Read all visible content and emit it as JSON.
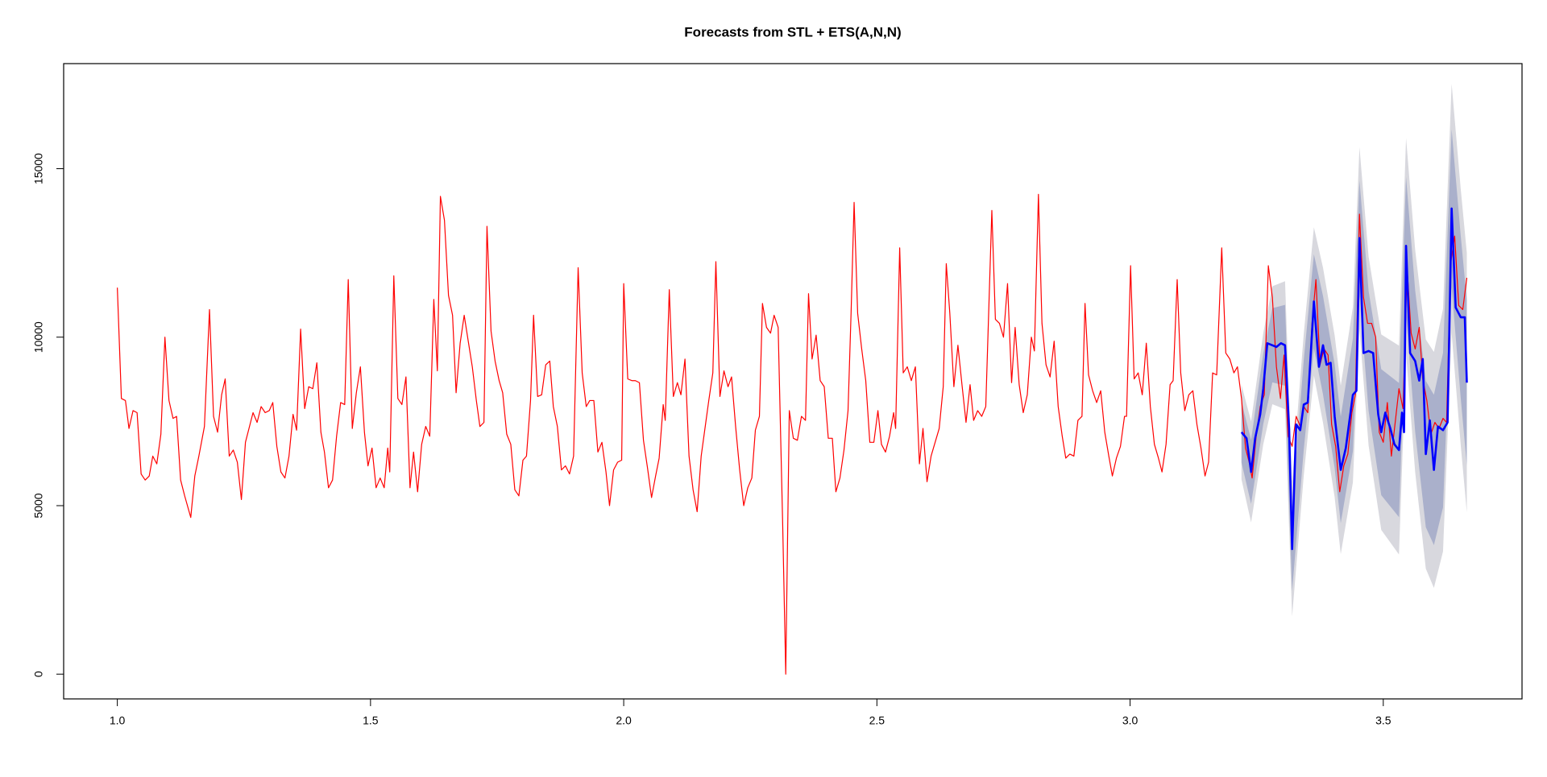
{
  "chart_data": {
    "type": "line",
    "title": "Forecasts from STL +  ETS(A,N,N)",
    "xlim": [
      0.894,
      3.774
    ],
    "ylim": [
      -735,
      18118
    ],
    "xticks": [
      {
        "value": 1,
        "label": "1.0"
      },
      1.5,
      {
        "value": 2,
        "label": "2.0"
      },
      2.5,
      {
        "value": 3,
        "label": "3.0"
      },
      3.5
    ],
    "yticks": [
      0,
      5000,
      10000,
      15000
    ],
    "intervals": [
      {
        "color": "#d8d8de",
        "x": [
          3.22,
          3.239,
          3.263,
          3.281,
          3.306,
          3.32,
          3.343,
          3.363,
          3.381,
          3.404,
          3.416,
          3.44,
          3.453,
          3.471,
          3.496,
          3.531,
          3.545,
          3.563,
          3.584,
          3.6,
          3.618,
          3.635,
          3.653,
          3.665
        ],
        "lower": [
          5780,
          4500,
          6820,
          8010,
          7860,
          1710,
          5900,
          8860,
          7460,
          5250,
          3560,
          5690,
          10240,
          6790,
          4280,
          3550,
          9510,
          5990,
          3130,
          2560,
          3640,
          10120,
          6790,
          4800
        ],
        "upper": [
          8580,
          7500,
          10120,
          11510,
          11660,
          5710,
          10100,
          13260,
          12060,
          10050,
          8560,
          10890,
          15640,
          12390,
          10080,
          9750,
          15910,
          12590,
          9930,
          9560,
          10840,
          17520,
          14390,
          12500
        ]
      },
      {
        "color": "#aab0cb",
        "x": [
          3.22,
          3.239,
          3.263,
          3.281,
          3.306,
          3.32,
          3.343,
          3.363,
          3.381,
          3.404,
          3.416,
          3.44,
          3.453,
          3.471,
          3.496,
          3.531,
          3.545,
          3.563,
          3.584,
          3.6,
          3.618,
          3.635,
          3.653,
          3.665
        ],
        "lower": [
          6280,
          5050,
          7420,
          8660,
          8560,
          2460,
          6670,
          9660,
          8300,
          6110,
          4480,
          6620,
          11230,
          7810,
          5310,
          4660,
          10670,
          7190,
          4360,
          3830,
          4950,
          11470,
          8180,
          6200
        ],
        "upper": [
          8080,
          6950,
          9520,
          10860,
          10960,
          4960,
          9330,
          12460,
          11220,
          9190,
          7640,
          9960,
          14650,
          11370,
          9050,
          8640,
          14750,
          11390,
          8700,
          8290,
          9530,
          16170,
          13000,
          11100
        ]
      }
    ],
    "series": [
      {
        "color": "#ff0000",
        "width": 1.2,
        "x": [
          1.0,
          1.008,
          1.016,
          1.023,
          1.031,
          1.039,
          1.047,
          1.055,
          1.063,
          1.07,
          1.078,
          1.086,
          1.094,
          1.102,
          1.11,
          1.117,
          1.125,
          1.133,
          1.145,
          1.153,
          1.161,
          1.172,
          1.182,
          1.19,
          1.198,
          1.206,
          1.213,
          1.221,
          1.229,
          1.237,
          1.245,
          1.253,
          1.26,
          1.268,
          1.276,
          1.284,
          1.292,
          1.3,
          1.307,
          1.315,
          1.323,
          1.331,
          1.339,
          1.347,
          1.354,
          1.362,
          1.37,
          1.378,
          1.386,
          1.394,
          1.402,
          1.409,
          1.417,
          1.425,
          1.433,
          1.441,
          1.449,
          1.456,
          1.464,
          1.472,
          1.48,
          1.488,
          1.495,
          1.503,
          1.511,
          1.519,
          1.527,
          1.534,
          1.538,
          1.546,
          1.554,
          1.562,
          1.57,
          1.578,
          1.585,
          1.593,
          1.601,
          1.609,
          1.617,
          1.625,
          1.632,
          1.638,
          1.646,
          1.654,
          1.662,
          1.669,
          1.677,
          1.685,
          1.693,
          1.701,
          1.709,
          1.716,
          1.724,
          1.73,
          1.738,
          1.746,
          1.754,
          1.761,
          1.769,
          1.777,
          1.785,
          1.793,
          1.801,
          1.808,
          1.816,
          1.822,
          1.83,
          1.838,
          1.846,
          1.854,
          1.861,
          1.869,
          1.877,
          1.885,
          1.893,
          1.901,
          1.91,
          1.918,
          1.926,
          1.933,
          1.941,
          1.949,
          1.957,
          1.965,
          1.972,
          1.98,
          1.988,
          1.996,
          2.0,
          2.008,
          2.016,
          2.023,
          2.031,
          2.039,
          2.047,
          2.055,
          2.063,
          2.07,
          2.078,
          2.082,
          2.09,
          2.098,
          2.106,
          2.113,
          2.121,
          2.129,
          2.137,
          2.145,
          2.153,
          2.161,
          2.168,
          2.176,
          2.182,
          2.19,
          2.198,
          2.206,
          2.213,
          2.221,
          2.229,
          2.237,
          2.245,
          2.253,
          2.26,
          2.268,
          2.274,
          2.282,
          2.29,
          2.297,
          2.305,
          2.314,
          2.32,
          2.327,
          2.335,
          2.343,
          2.351,
          2.359,
          2.365,
          2.372,
          2.38,
          2.388,
          2.396,
          2.404,
          2.412,
          2.419,
          2.427,
          2.435,
          2.443,
          2.449,
          2.455,
          2.462,
          2.47,
          2.478,
          2.486,
          2.494,
          2.502,
          2.509,
          2.517,
          2.525,
          2.533,
          2.537,
          2.545,
          2.552,
          2.56,
          2.568,
          2.576,
          2.584,
          2.591,
          2.599,
          2.607,
          2.615,
          2.623,
          2.631,
          2.637,
          2.644,
          2.652,
          2.66,
          2.668,
          2.676,
          2.684,
          2.691,
          2.699,
          2.707,
          2.715,
          2.727,
          2.734,
          2.742,
          2.75,
          2.758,
          2.766,
          2.773,
          2.781,
          2.789,
          2.797,
          2.805,
          2.811,
          2.819,
          2.826,
          2.834,
          2.842,
          2.85,
          2.858,
          2.866,
          2.873,
          2.881,
          2.889,
          2.897,
          2.905,
          2.911,
          2.918,
          2.926,
          2.934,
          2.942,
          2.95,
          2.958,
          2.965,
          2.973,
          2.981,
          2.989,
          2.993,
          3.001,
          3.008,
          3.016,
          3.024,
          3.032,
          3.04,
          3.048,
          3.056,
          3.063,
          3.071,
          3.079,
          3.085,
          3.093,
          3.1,
          3.108,
          3.116,
          3.124,
          3.132,
          3.14,
          3.148,
          3.155,
          3.163,
          3.171,
          3.181,
          3.189,
          3.197,
          3.205,
          3.212,
          3.22,
          3.228,
          3.236,
          3.241,
          3.249,
          3.257,
          3.265,
          3.273,
          3.281,
          3.289,
          3.297,
          3.304,
          3.312,
          3.32,
          3.328,
          3.336,
          3.343,
          3.351,
          3.359,
          3.367,
          3.375,
          3.383,
          3.391,
          3.398,
          3.406,
          3.414,
          3.422,
          3.43,
          3.438,
          3.445,
          3.453,
          3.461,
          3.469,
          3.477,
          3.485,
          3.492,
          3.5,
          3.508,
          3.516,
          3.524,
          3.531,
          3.539,
          3.547,
          3.555,
          3.563,
          3.571,
          3.578,
          3.586,
          3.594,
          3.602,
          3.61,
          3.618,
          3.625,
          3.633,
          3.641,
          3.649,
          3.657,
          3.665
        ],
        "values": [
          11470,
          8180,
          8120,
          7290,
          7820,
          7760,
          5940,
          5760,
          5880,
          6470,
          6240,
          7120,
          10000,
          8120,
          7590,
          7650,
          5760,
          5290,
          4650,
          5880,
          6470,
          7350,
          10820,
          7650,
          7180,
          8290,
          8760,
          6470,
          6650,
          6290,
          5180,
          6880,
          7290,
          7760,
          7470,
          7940,
          7760,
          7820,
          8060,
          6760,
          6000,
          5820,
          6470,
          7710,
          7240,
          10240,
          7880,
          8530,
          8470,
          9240,
          7180,
          6590,
          5530,
          5760,
          7060,
          8060,
          8000,
          11710,
          7290,
          8350,
          9120,
          7180,
          6180,
          6710,
          5530,
          5820,
          5530,
          6710,
          6000,
          11820,
          8180,
          8000,
          8820,
          5530,
          6590,
          5410,
          6820,
          7350,
          7060,
          11120,
          9000,
          14180,
          13470,
          11240,
          10650,
          8350,
          9820,
          10650,
          9880,
          9120,
          8120,
          7350,
          7470,
          13290,
          10180,
          9290,
          8710,
          8350,
          7120,
          6820,
          5470,
          5290,
          6350,
          6470,
          8120,
          10650,
          8240,
          8290,
          9180,
          9290,
          7940,
          7350,
          6060,
          6180,
          5940,
          6470,
          12060,
          8940,
          7940,
          8120,
          8120,
          6590,
          6880,
          6000,
          5000,
          6060,
          6290,
          6350,
          11590,
          8760,
          8710,
          8710,
          8650,
          6940,
          6120,
          5240,
          5880,
          6410,
          8000,
          7530,
          11410,
          8240,
          8650,
          8290,
          9350,
          6470,
          5470,
          4820,
          6470,
          7350,
          8120,
          8940,
          12240,
          8240,
          9000,
          8530,
          8820,
          7350,
          6060,
          5000,
          5530,
          5820,
          7240,
          7650,
          11000,
          10290,
          10120,
          10650,
          10290,
          4410,
          0,
          7820,
          7000,
          6940,
          7650,
          7530,
          11290,
          9350,
          10060,
          8710,
          8530,
          7000,
          7000,
          5410,
          5820,
          6650,
          7820,
          10710,
          14000,
          10710,
          9650,
          8710,
          6880,
          6880,
          7820,
          6820,
          6590,
          7060,
          7760,
          7290,
          12650,
          8940,
          9120,
          8710,
          9120,
          6240,
          7290,
          5710,
          6470,
          6880,
          7290,
          8530,
          12180,
          10710,
          8530,
          9760,
          8590,
          7470,
          8590,
          7530,
          7820,
          7650,
          7940,
          13760,
          10530,
          10410,
          10000,
          11590,
          8650,
          10290,
          8590,
          7760,
          8290,
          10000,
          9590,
          14240,
          10410,
          9180,
          8820,
          9880,
          7940,
          7060,
          6410,
          6530,
          6470,
          7530,
          7650,
          11000,
          8880,
          8410,
          8060,
          8410,
          7180,
          6470,
          5880,
          6410,
          6760,
          7650,
          7650,
          12120,
          8760,
          8940,
          8290,
          9820,
          7940,
          6820,
          6410,
          6000,
          6820,
          8590,
          8710,
          11710,
          8940,
          7820,
          8290,
          8410,
          7410,
          6710,
          5880,
          6290,
          8940,
          8880,
          12650,
          9530,
          9350,
          8940,
          9120,
          8180,
          6710,
          6240,
          5820,
          7060,
          7940,
          8290,
          12120,
          11180,
          9120,
          8180,
          9470,
          7060,
          6760,
          7650,
          7350,
          7940,
          7760,
          10350,
          11710,
          9180,
          9650,
          9470,
          7410,
          6760,
          5410,
          6180,
          6530,
          7760,
          8290,
          13650,
          11180,
          10410,
          10410,
          10000,
          7180,
          6880,
          8060,
          6470,
          7530,
          8470,
          7880,
          12060,
          10120,
          9650,
          10290,
          8760,
          8120,
          7120,
          7470,
          7290,
          7590,
          7470,
          12180,
          13000,
          10940,
          10820,
          11760
        ]
      },
      {
        "color": "#0000ff",
        "width": 2.6,
        "x": [
          3.22,
          3.23,
          3.239,
          3.247,
          3.257,
          3.263,
          3.271,
          3.281,
          3.289,
          3.298,
          3.306,
          3.314,
          3.32,
          3.328,
          3.336,
          3.343,
          3.351,
          3.363,
          3.373,
          3.381,
          3.388,
          3.396,
          3.404,
          3.416,
          3.426,
          3.44,
          3.447,
          3.453,
          3.461,
          3.471,
          3.48,
          3.49,
          3.496,
          3.504,
          3.514,
          3.522,
          3.531,
          3.537,
          3.541,
          3.545,
          3.553,
          3.563,
          3.571,
          3.578,
          3.584,
          3.592,
          3.6,
          3.608,
          3.618,
          3.627,
          3.635,
          3.643,
          3.653,
          3.661,
          3.665
        ],
        "values": [
          7180,
          7000,
          6000,
          7000,
          7710,
          8470,
          9820,
          9760,
          9710,
          9820,
          9760,
          7290,
          3710,
          7410,
          7240,
          8000,
          8060,
          11060,
          9120,
          9760,
          9180,
          9240,
          7650,
          6060,
          6710,
          8290,
          8410,
          12940,
          9530,
          9590,
          9530,
          7710,
          7180,
          7760,
          7290,
          6820,
          6650,
          7760,
          7180,
          12710,
          9530,
          9290,
          8710,
          9350,
          6530,
          7530,
          6060,
          7350,
          7240,
          7470,
          13820,
          10880,
          10590,
          10590,
          8650
        ]
      }
    ]
  }
}
